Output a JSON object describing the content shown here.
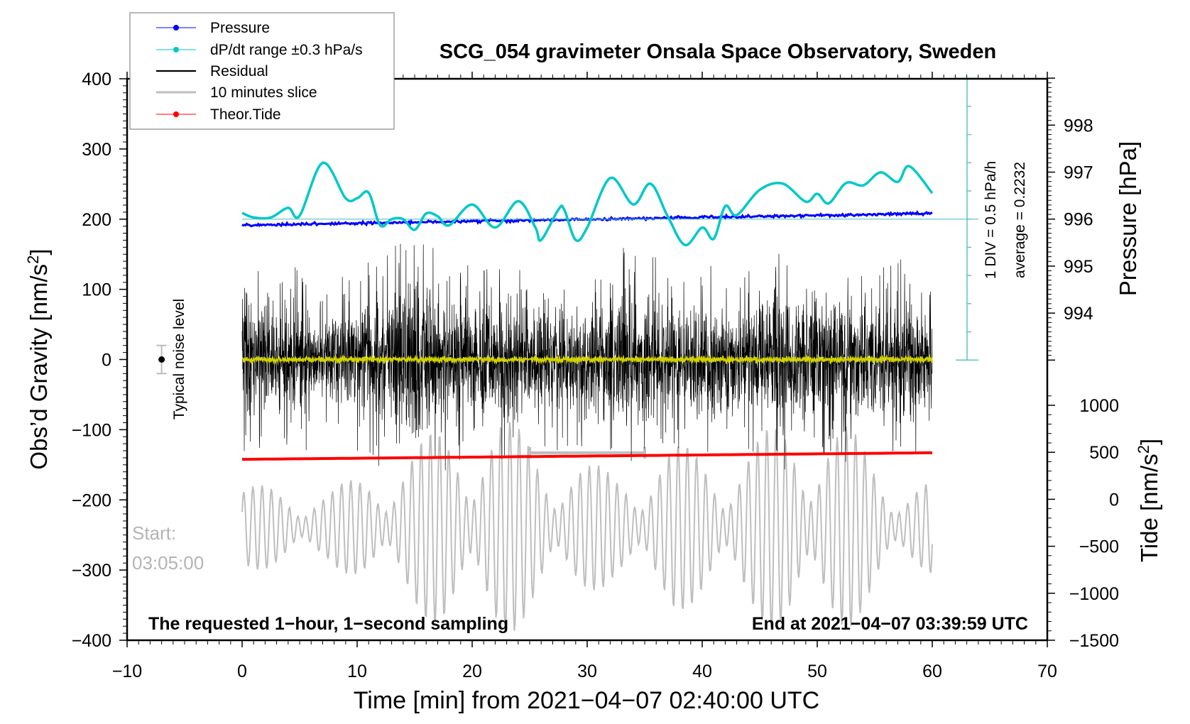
{
  "chart_data": {
    "type": "line",
    "title": "SCG_054 gravimeter Onsala Space Observatory, Sweden",
    "xlabel": "Time [min] from 2021−04−07 02:40:00 UTC",
    "ylabel_left": "Obs’d Gravity [nm/s²]",
    "ylabel_left_text": "Obs’d Gravity [nm/s",
    "ylabel_right_pressure": "Pressure [hPa]",
    "ylabel_right_tide_text": "Tide [nm/s",
    "superscript": "2",
    "xlim": [
      -10,
      70
    ],
    "ylim_gravity": [
      -400,
      400
    ],
    "ylim_tide": [
      -1500,
      1000
    ],
    "x_ticks": [
      "−10",
      "0",
      "10",
      "20",
      "30",
      "40",
      "50",
      "60",
      "70"
    ],
    "x_tick_values": [
      -10,
      0,
      10,
      20,
      30,
      40,
      50,
      60,
      70
    ],
    "y_ticks_gravity": [
      "400",
      "300",
      "200",
      "100",
      "0",
      "−100",
      "−200",
      "−300",
      "−400"
    ],
    "y_tick_values_gravity": [
      400,
      300,
      200,
      100,
      0,
      -100,
      -200,
      -300,
      -400
    ],
    "y_ticks_pressure": [
      "998",
      "997",
      "996",
      "995",
      "994"
    ],
    "y_tick_values_pressure": [
      998,
      997,
      996,
      995,
      994
    ],
    "y_ticks_tide": [
      "1000",
      "500",
      "0",
      "−500",
      "−1000",
      "−1500"
    ],
    "y_tick_values_tide": [
      1000,
      500,
      0,
      -500,
      -1000,
      -1500
    ],
    "legend": {
      "placement": "top-left",
      "entries": [
        {
          "label": "Pressure",
          "color": "#0000ff",
          "marker": true
        },
        {
          "label": "dP/dt range ±0.3 hPa/s",
          "color": "#00c8c8",
          "marker": true
        },
        {
          "label": "Residual",
          "color": "#000000",
          "marker": false
        },
        {
          "label": "10 minutes slice",
          "color": "#bebebe",
          "marker": false
        },
        {
          "label": "Theor.Tide",
          "color": "#ff0000",
          "marker": true
        }
      ]
    },
    "series": [
      {
        "name": "Pressure",
        "axis": "pressure_hPa",
        "color": "#0000ff",
        "t": [
          0,
          60
        ],
        "values": [
          995.87,
          996.12
        ]
      },
      {
        "name": "dP/dt",
        "axis": "rate_hPa_per_h",
        "color": "#00c8c8",
        "t": [
          0,
          1,
          2.5,
          4,
          5,
          7,
          9,
          10,
          11,
          12,
          13,
          14,
          15,
          16,
          17,
          18,
          20,
          22,
          24,
          25.5,
          26,
          27.5,
          28,
          29,
          30,
          32,
          34,
          35.5,
          37,
          38.5,
          40,
          41,
          42,
          43,
          45,
          47,
          49,
          50,
          51,
          52.5,
          54,
          55.5,
          57,
          58,
          60
        ],
        "values": [
          0.11,
          0.03,
          0.03,
          0.2,
          0.06,
          1.0,
          0.37,
          0.37,
          0.47,
          -0.11,
          0.0,
          0.0,
          -0.19,
          0.1,
          0.05,
          -0.11,
          0.26,
          -0.15,
          0.32,
          -0.15,
          -0.37,
          0.17,
          0.17,
          -0.37,
          -0.15,
          0.73,
          0.26,
          0.63,
          0.05,
          -0.46,
          -0.15,
          -0.35,
          0.23,
          0.07,
          0.52,
          0.63,
          0.31,
          0.45,
          0.28,
          0.64,
          0.6,
          0.83,
          0.66,
          0.94,
          0.46
        ]
      },
      {
        "name": "Residual",
        "axis": "gravity",
        "color": "#000000",
        "sampling_s": 1,
        "envelope_t": [
          1,
          3,
          5,
          7,
          9,
          11,
          13,
          15,
          17,
          19,
          21,
          23,
          25,
          27,
          29,
          31,
          33,
          35,
          37,
          39,
          41,
          43,
          45,
          47,
          49,
          51,
          53,
          55,
          57,
          59
        ],
        "envelope_amplitude": [
          135,
          110,
          140,
          85,
          120,
          140,
          150,
          200,
          160,
          140,
          130,
          150,
          120,
          130,
          125,
          110,
          165,
          150,
          130,
          125,
          150,
          120,
          130,
          155,
          140,
          130,
          150,
          130,
          140,
          125
        ]
      },
      {
        "name": "Residual mean",
        "axis": "gravity",
        "color": "#d2d200",
        "value": 0
      },
      {
        "name": "10 minutes slice",
        "axis": "tide",
        "color": "#bebebe",
        "center": -300,
        "envelope_t": [
          2.5,
          7.5,
          12.5,
          17.5,
          22.5,
          27.5,
          32.5,
          37.5,
          42.5,
          47.5,
          52.5,
          57.5
        ],
        "envelope_amplitude": [
          450,
          400,
          700,
          1100,
          1200,
          800,
          600,
          900,
          800,
          1200,
          1100,
          500
        ],
        "slice_marker_t": [
          25,
          35
        ],
        "slice_marker_value": 495
      },
      {
        "name": "Theor.Tide",
        "axis": "tide",
        "color": "#ff0000",
        "t": [
          0,
          60
        ],
        "values": [
          425,
          495
        ]
      }
    ],
    "noise_level": {
      "t": -7,
      "value": 0,
      "error": 20,
      "label": "Typical noise level"
    },
    "rate_axis": {
      "div_label": "1 DIV = 0.5 hPa/h",
      "average_label": "average = 0.2232",
      "div": 0.5
    },
    "annotations": {
      "start_label": "Start:",
      "start_time": "03:05:00",
      "bottom_left": "The requested 1−hour, 1−second sampling",
      "bottom_right": "End at 2021−04−07 03:39:59 UTC"
    }
  }
}
